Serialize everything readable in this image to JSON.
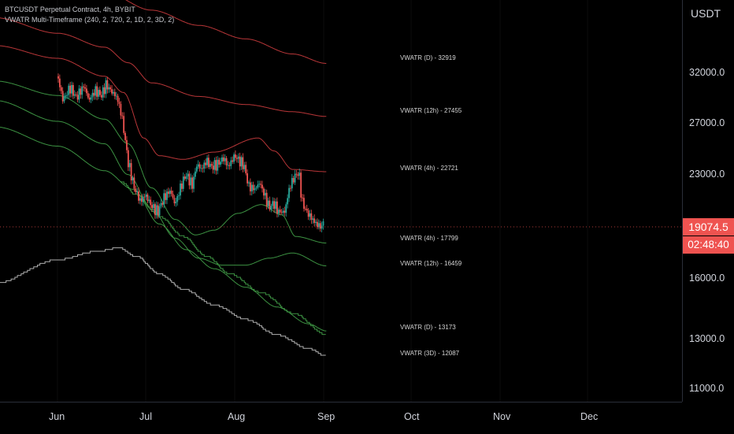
{
  "legend": {
    "symbol_line": "BTCUSDT Perpetual Contract, 4h, BYBIT",
    "indicator_line": "VWATR Multi-Timeframe (240, 2, 720, 2, 1D, 2, 3D, 2)"
  },
  "price_axis": {
    "currency": "USDT",
    "ticks": [
      "32000.0",
      "27000.0",
      "23000.0",
      "16000.0",
      "13000.0",
      "11000.0"
    ]
  },
  "last_price": {
    "price": "19074.5",
    "countdown": "02:48:40",
    "color": "#ef5350"
  },
  "colors": {
    "up": "#26a69a",
    "down": "#ef5350",
    "upper_band": "#c2393b",
    "lower_band": "#3f9a46",
    "daily_lower": "#b8b8b8",
    "background": "#000000"
  },
  "chart_data": {
    "type": "line",
    "x_labels": [
      "Jun",
      "Jul",
      "Aug",
      "Sep",
      "Oct",
      "Nov",
      "Dec"
    ],
    "yscale": "log",
    "ylim": [
      10500,
      40000
    ],
    "series": [
      {
        "name": "VWATR (D)",
        "end_label": "VWATR (D) - 32919",
        "end_value": 32919
      },
      {
        "name": "VWATR (12h)",
        "end_label": "VWATR (12h) - 27455",
        "end_value": 27455
      },
      {
        "name": "VWATR (4h)",
        "end_label": "VWATR (4h) - 22721",
        "end_value": 22721
      },
      {
        "name": "VWATR (4h)",
        "end_label": "VWATR (4h) - 17799",
        "end_value": 17799
      },
      {
        "name": "VWATR (12h)",
        "end_label": "VWATR (12h) - 16459",
        "end_value": 16459
      },
      {
        "name": "VWATR (D)",
        "end_label": "VWATR (D) - 13173",
        "end_value": 13173
      },
      {
        "name": "VWATR (3D)",
        "end_label": "VWATR (3D) - 12087",
        "end_value": 12087
      }
    ],
    "price_path": [
      [
        0,
        31500
      ],
      [
        0.35,
        29000
      ],
      [
        0.8,
        30300
      ],
      [
        1.2,
        29300
      ],
      [
        1.7,
        30500
      ],
      [
        2.0,
        29000
      ],
      [
        2.4,
        30000
      ],
      [
        2.8,
        29500
      ],
      [
        3.1,
        30600
      ],
      [
        3.5,
        29800
      ],
      [
        3.8,
        29300
      ],
      [
        4.1,
        27500
      ],
      [
        4.5,
        23500
      ],
      [
        4.9,
        21500
      ],
      [
        5.3,
        20500
      ],
      [
        5.6,
        21000
      ],
      [
        6.0,
        20200
      ],
      [
        6.4,
        19800
      ],
      [
        6.8,
        20800
      ],
      [
        7.2,
        21300
      ],
      [
        7.5,
        20300
      ],
      [
        7.9,
        21700
      ],
      [
        8.2,
        22500
      ],
      [
        8.6,
        21700
      ],
      [
        8.9,
        23300
      ],
      [
        9.2,
        22900
      ],
      [
        9.5,
        23600
      ],
      [
        9.8,
        23100
      ],
      [
        10.2,
        23300
      ],
      [
        10.6,
        23800
      ],
      [
        10.9,
        23100
      ],
      [
        11.3,
        24000
      ],
      [
        11.6,
        23600
      ],
      [
        11.9,
        23200
      ],
      [
        12.2,
        21600
      ],
      [
        12.6,
        21400
      ],
      [
        12.9,
        21900
      ],
      [
        13.2,
        21000
      ],
      [
        13.5,
        20100
      ],
      [
        13.8,
        20400
      ],
      [
        14.1,
        19800
      ],
      [
        14.5,
        19800
      ],
      [
        14.8,
        21500
      ],
      [
        15.1,
        22300
      ],
      [
        15.4,
        22700
      ],
      [
        15.6,
        20500
      ],
      [
        15.9,
        19800
      ],
      [
        16.2,
        19400
      ],
      [
        16.5,
        19000
      ],
      [
        16.8,
        18800
      ],
      [
        17.0,
        19074.5
      ]
    ]
  }
}
